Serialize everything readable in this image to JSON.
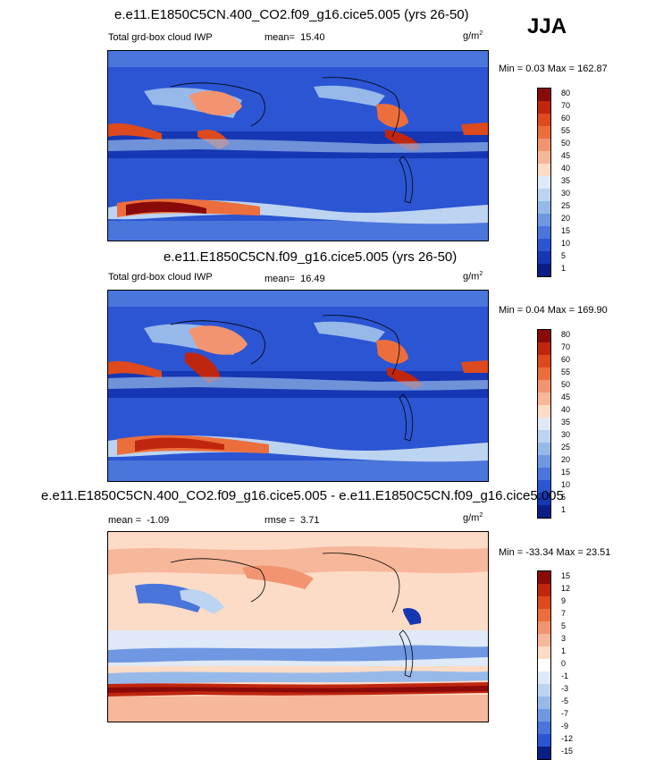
{
  "season": "JJA",
  "panels": [
    {
      "title": "e.e11.E1850C5CN.400_CO2.f09_g16.cice5.005 (yrs 26-50)",
      "variable": "Total grd-box cloud IWP",
      "mean_label": "mean=",
      "mean_value": "15.40",
      "unit_base": "g/m",
      "unit_exp": "2",
      "min_label": "Min =",
      "min_value": "0.03",
      "max_label": "Max =",
      "max_value": "162.87",
      "levels": [
        "80",
        "70",
        "60",
        "55",
        "50",
        "45",
        "40",
        "35",
        "30",
        "25",
        "20",
        "15",
        "10",
        "5",
        "1"
      ],
      "colors": [
        "#8a0a0a",
        "#c0260e",
        "#dd4a1e",
        "#ec6e3c",
        "#f39470",
        "#f7b79a",
        "#fcdcc6",
        "#dfe9f7",
        "#bcd3f1",
        "#97b9ea",
        "#6f97e2",
        "#4a75db",
        "#2b55d2",
        "#1537b3",
        "#0a1e86"
      ]
    },
    {
      "title": "e.e11.E1850C5CN.f09_g16.cice5.005 (yrs 26-50)",
      "variable": "Total grd-box cloud IWP",
      "mean_label": "mean=",
      "mean_value": "16.49",
      "unit_base": "g/m",
      "unit_exp": "2",
      "min_label": "Min =",
      "min_value": "0.04",
      "max_label": "Max =",
      "max_value": "169.90",
      "levels": [
        "80",
        "70",
        "60",
        "55",
        "50",
        "45",
        "40",
        "35",
        "30",
        "25",
        "20",
        "15",
        "10",
        "5",
        "1"
      ],
      "colors": [
        "#8a0a0a",
        "#c0260e",
        "#dd4a1e",
        "#ec6e3c",
        "#f39470",
        "#f7b79a",
        "#fcdcc6",
        "#dfe9f7",
        "#bcd3f1",
        "#97b9ea",
        "#6f97e2",
        "#4a75db",
        "#2b55d2",
        "#1537b3",
        "#0a1e86"
      ]
    },
    {
      "title": "e.e11.E1850C5CN.400_CO2.f09_g16.cice5.005 - e.e11.E1850C5CN.f09_g16.cice5.005",
      "mean_label": "mean =",
      "mean_value": "-1.09",
      "rmse_label": "rmse =",
      "rmse_value": "3.71",
      "unit_base": "g/m",
      "unit_exp": "2",
      "min_label": "Min =",
      "min_value": "-33.34",
      "max_label": "Max =",
      "max_value": "23.51",
      "levels": [
        "15",
        "12",
        "9",
        "7",
        "5",
        "3",
        "1",
        "0",
        "-1",
        "-3",
        "-5",
        "-7",
        "-9",
        "-12",
        "-15"
      ],
      "colors": [
        "#8a0a0a",
        "#c0260e",
        "#dd4a1e",
        "#ec6e3c",
        "#f39470",
        "#f7b79a",
        "#fcdcc6",
        "#ffffff",
        "#dfe9f7",
        "#bcd3f1",
        "#97b9ea",
        "#6f97e2",
        "#4a75db",
        "#2b55d2",
        "#0a1e86"
      ]
    }
  ],
  "chart_data": [
    {
      "type": "heatmap",
      "title": "e.e11.E1850C5CN.400_CO2.f09_g16.cice5.005 (yrs 26-50)",
      "variable": "Total grd-box cloud IWP",
      "units": "g/m^2",
      "mean": 15.4,
      "min": 0.03,
      "max": 162.87,
      "contour_levels": [
        1,
        5,
        10,
        15,
        20,
        25,
        30,
        35,
        40,
        45,
        50,
        55,
        60,
        70,
        80
      ]
    },
    {
      "type": "heatmap",
      "title": "e.e11.E1850C5CN.f09_g16.cice5.005 (yrs 26-50)",
      "variable": "Total grd-box cloud IWP",
      "units": "g/m^2",
      "mean": 16.49,
      "min": 0.04,
      "max": 169.9,
      "contour_levels": [
        1,
        5,
        10,
        15,
        20,
        25,
        30,
        35,
        40,
        45,
        50,
        55,
        60,
        70,
        80
      ]
    },
    {
      "type": "heatmap",
      "title": "e.e11.E1850C5CN.400_CO2.f09_g16.cice5.005 - e.e11.E1850C5CN.f09_g16.cice5.005",
      "units": "g/m^2",
      "mean": -1.09,
      "rmse": 3.71,
      "min": -33.34,
      "max": 23.51,
      "contour_levels": [
        -15,
        -12,
        -9,
        -7,
        -5,
        -3,
        -1,
        0,
        1,
        3,
        5,
        7,
        9,
        12,
        15
      ]
    }
  ]
}
